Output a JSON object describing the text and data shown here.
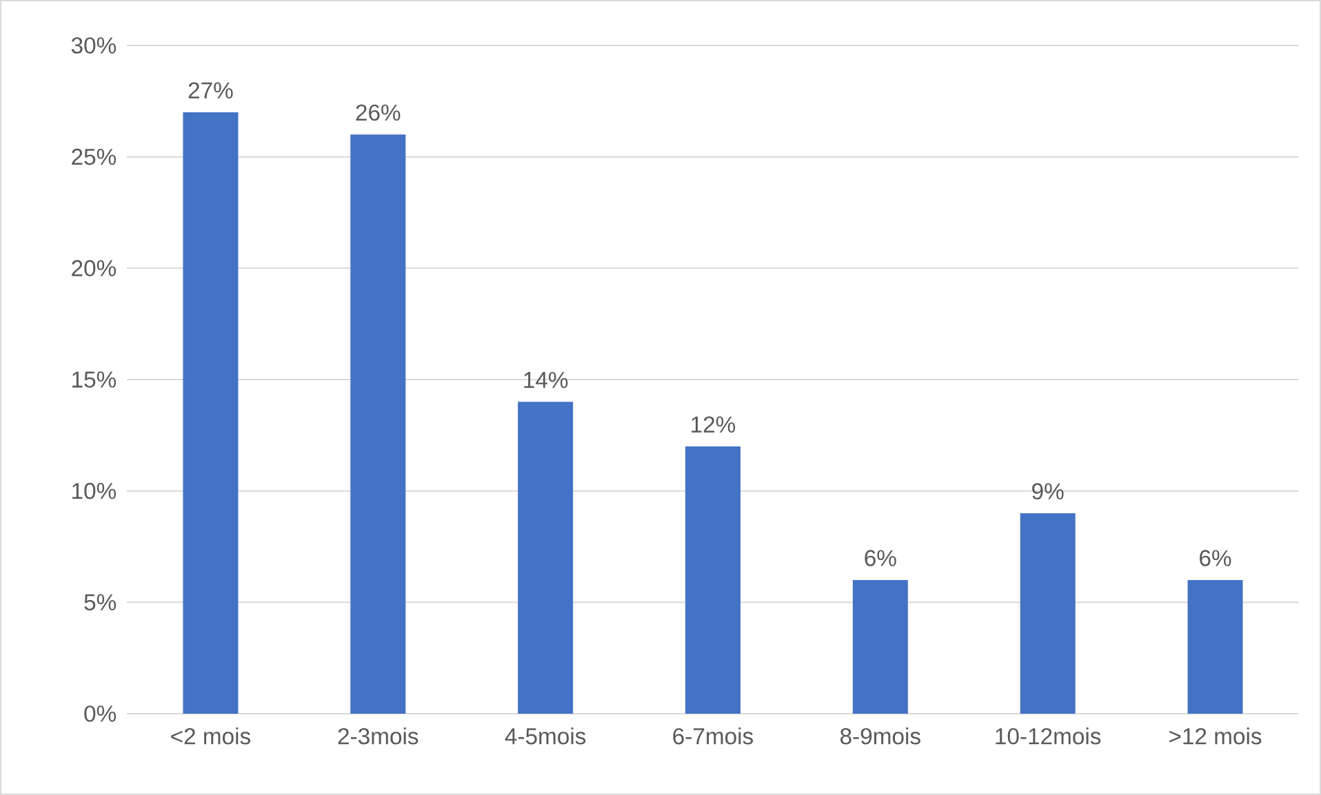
{
  "chart_data": {
    "type": "bar",
    "categories": [
      "<2 mois",
      "2-3mois",
      "4-5mois",
      "6-7mois",
      "8-9mois",
      "10-12mois",
      ">12 mois"
    ],
    "values": [
      27,
      26,
      14,
      12,
      6,
      9,
      6
    ],
    "value_labels": [
      "27%",
      "26%",
      "14%",
      "12%",
      "6%",
      "9%",
      "6%"
    ],
    "color": "#4472c4",
    "ylim": [
      0,
      30
    ],
    "yticks": [
      {
        "value": 0,
        "label": "0%"
      },
      {
        "value": 5,
        "label": "5%"
      },
      {
        "value": 10,
        "label": "10%"
      },
      {
        "value": 15,
        "label": "15%"
      },
      {
        "value": 20,
        "label": "20%"
      },
      {
        "value": 25,
        "label": "25%"
      },
      {
        "value": 30,
        "label": "30%"
      }
    ],
    "grid": "y"
  }
}
